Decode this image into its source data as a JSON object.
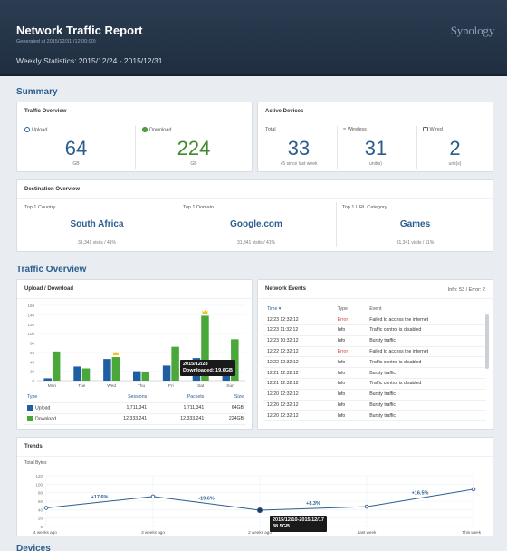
{
  "header": {
    "title": "Network Traffic Report",
    "generated": "Generated at 2015/12/31 (12:00:00)",
    "weekly": "Weekly Statistics: 2015/12/24 - 2015/12/31",
    "logo": "Synology"
  },
  "summary": {
    "heading": "Summary",
    "traffic": {
      "title": "Traffic Overview",
      "upload_label": "Upload",
      "upload_value": "64",
      "upload_unit": "GB",
      "download_label": "Download",
      "download_value": "224",
      "download_unit": "GB"
    },
    "devices": {
      "title": "Active Devices",
      "total_label": "Total",
      "total_value": "33",
      "total_note": "+5 since last week",
      "wireless_label": "Wireless",
      "wireless_value": "31",
      "wireless_unit": "unit(s)",
      "wired_label": "Wired",
      "wired_value": "2",
      "wired_unit": "unit(s)"
    },
    "destination": {
      "title": "Destination Overview",
      "items": [
        {
          "label": "Top 1 Country",
          "name": "South Africa",
          "visits": "31,341 visits / 41%"
        },
        {
          "label": "Top 1 Domain",
          "name": "Google.com",
          "visits": "31,341 visits / 41%"
        },
        {
          "label": "Top 1 URL Category",
          "name": "Games",
          "visits": "31,341 visits / 11%"
        }
      ]
    }
  },
  "traffic_section": {
    "heading": "Traffic Overview",
    "updown": {
      "title": "Upload / Download",
      "tooltip_date": "2015/12/28",
      "tooltip_value": "Downloaded: 19.6GB",
      "headers": [
        "Type",
        "Sessions",
        "Packets",
        "Size"
      ],
      "rows": [
        {
          "type": "Upload",
          "sessions": "1,711,341",
          "packets": "1,711,341",
          "size": "64GB"
        },
        {
          "type": "Download",
          "sessions": "12,333,241",
          "packets": "12,333,241",
          "size": "224GB"
        }
      ]
    },
    "events": {
      "title": "Network Events",
      "info": "Info: 53 / Error: 2",
      "headers": [
        "Time ▾",
        "Type",
        "Event"
      ],
      "rows": [
        {
          "time": "12/23 12:32:12",
          "type": "Error",
          "event": "Failed to access the internet"
        },
        {
          "time": "12/23 11:32:12",
          "type": "Info",
          "event": "Traffic control is disabled"
        },
        {
          "time": "12/23 10:32:12",
          "type": "Info",
          "event": "Bursty traffic"
        },
        {
          "time": "12/22 12:32:12",
          "type": "Error",
          "event": "Failed to access the internet"
        },
        {
          "time": "12/22 12:32:12",
          "type": "Info",
          "event": "Traffic control is disabled"
        },
        {
          "time": "12/21 12:32:12",
          "type": "Info",
          "event": "Bursty traffic"
        },
        {
          "time": "12/21 12:32:12",
          "type": "Info",
          "event": "Traffic control is disabled"
        },
        {
          "time": "12/20 12:32:12",
          "type": "Info",
          "event": "Bursty traffic"
        },
        {
          "time": "12/20 12:32:12",
          "type": "Info",
          "event": "Bursty traffic"
        },
        {
          "time": "12/20 12:32:12",
          "type": "Info",
          "event": "Bursty traffic"
        }
      ]
    }
  },
  "trends": {
    "title": "Trends",
    "ylabel": "Total Bytes",
    "tooltip_range": "2015/12/10-2015/12/17",
    "tooltip_value": "38.5GB"
  },
  "devices_heading": "Devices",
  "colors": {
    "upload": "#1e5fa3",
    "download": "#4aa83a",
    "accent": "#2b5d8f"
  },
  "chart_data": [
    {
      "type": "bar",
      "categories": [
        "Mon",
        "Tue",
        "Wed",
        "Thu",
        "Fri",
        "Sat",
        "Sun"
      ],
      "series": [
        {
          "name": "Upload",
          "values": [
            5,
            30,
            46,
            20,
            32,
            48,
            15
          ]
        },
        {
          "name": "Download",
          "values": [
            62,
            26,
            50,
            18,
            72,
            138,
            88
          ]
        }
      ],
      "yticks": [
        "0",
        "20",
        "40",
        "60",
        "80",
        "100",
        "120",
        "140",
        "160"
      ],
      "ylim": [
        0,
        160
      ]
    },
    {
      "type": "line",
      "categories": [
        "4 weeks ago",
        "3 weeks ago",
        "2 weeks ago",
        "Last week",
        "This week"
      ],
      "x_positions": [
        0,
        1,
        2,
        3,
        4
      ],
      "values": [
        44,
        71,
        38.5,
        47,
        88
      ],
      "extra_point": {
        "x": 4.0,
        "y": 90
      },
      "changes": [
        "+17.6%",
        "-19.6%",
        "+8.3%",
        "+16.5%"
      ],
      "yticks": [
        "0",
        "20",
        "40",
        "60",
        "80",
        "100",
        "120"
      ],
      "ylim": [
        0,
        120
      ]
    }
  ]
}
